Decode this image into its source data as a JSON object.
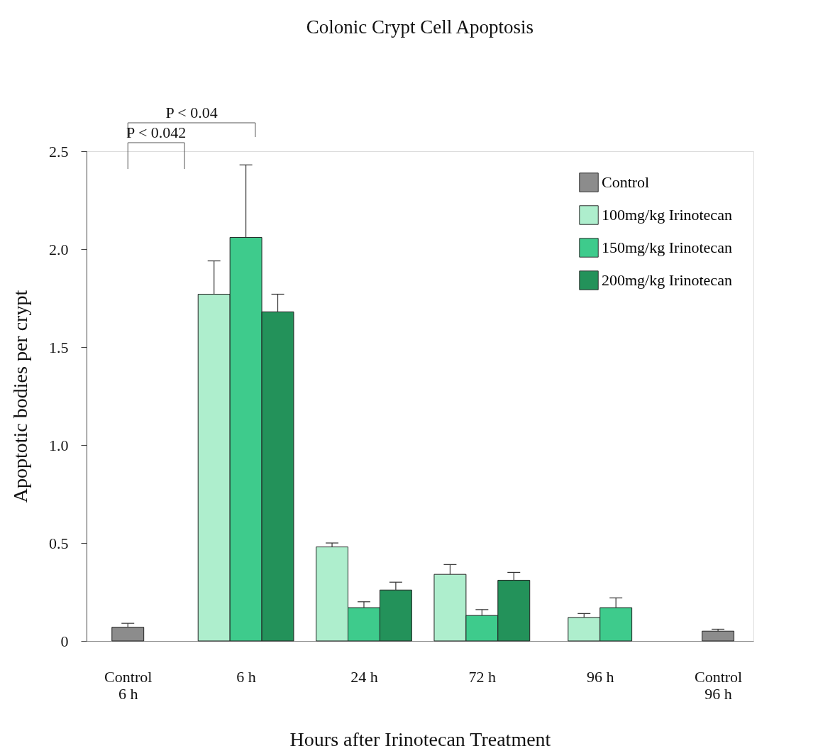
{
  "chart_data": {
    "type": "bar",
    "title": "Colonic Crypt Cell Apoptosis",
    "xlabel": "Hours after Irinotecan Treatment",
    "ylabel": "Apoptotic bodies per crypt",
    "categories": [
      "Control\n6 h",
      "6 h",
      "24 h",
      "72 h",
      "96 h",
      "Control\n96 h"
    ],
    "series": [
      {
        "name": "Control",
        "color": "#8c8c8c",
        "values": [
          0.07,
          null,
          null,
          null,
          null,
          0.05
        ],
        "errors": [
          [
            0.07,
            0.09
          ],
          null,
          null,
          null,
          null,
          [
            0.05,
            0.06
          ]
        ]
      },
      {
        "name": "100mg/kg Irinotecan",
        "color": "#aeeecd",
        "values": [
          null,
          1.77,
          0.48,
          0.34,
          0.12,
          null
        ],
        "errors": [
          null,
          [
            1.77,
            1.94
          ],
          [
            0.48,
            0.5
          ],
          [
            0.34,
            0.39
          ],
          [
            0.12,
            0.14
          ],
          null
        ]
      },
      {
        "name": "150mg/kg Irinotecan",
        "color": "#3ecb8c",
        "values": [
          null,
          2.06,
          0.17,
          0.13,
          0.17,
          null
        ],
        "errors": [
          null,
          [
            2.06,
            2.43
          ],
          [
            0.17,
            0.2
          ],
          [
            0.13,
            0.16
          ],
          [
            0.17,
            0.22
          ],
          null
        ]
      },
      {
        "name": "200mg/kg Irinotecan",
        "color": "#23925a",
        "values": [
          null,
          1.68,
          0.26,
          0.31,
          null,
          null
        ],
        "errors": [
          null,
          [
            1.68,
            1.77
          ],
          [
            0.26,
            0.3
          ],
          [
            0.31,
            0.35
          ],
          null,
          null
        ]
      }
    ],
    "ylim": [
      0,
      2.5
    ],
    "yticks": [
      0,
      {
        "value": 0.5,
        "label": "0.5"
      },
      {
        "value": 1,
        "label": "1.0"
      },
      {
        "value": 1.5,
        "label": "1.5"
      },
      {
        "value": 2,
        "label": "2.0"
      },
      {
        "value": 2.5,
        "label": "2.5"
      }
    ],
    "annotations": [
      "P < 0.04",
      "P < 0.042"
    ],
    "grid": false,
    "legend": "top right"
  }
}
